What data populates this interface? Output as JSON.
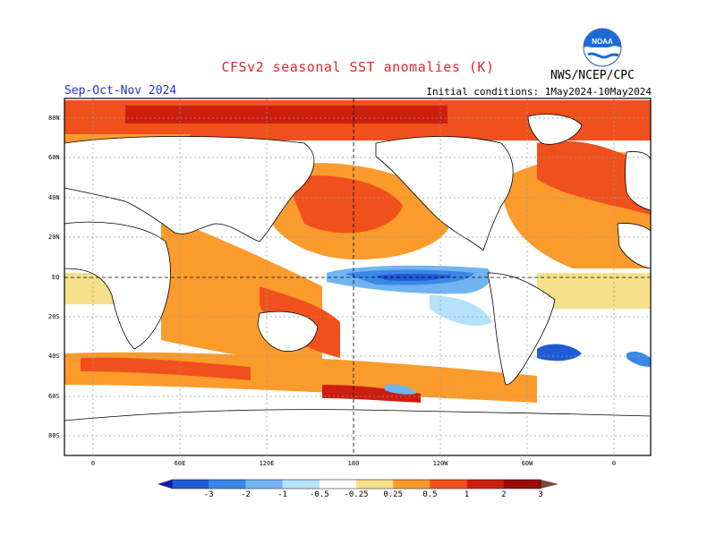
{
  "title": "CFSv2 seasonal SST anomalies (K)",
  "season": "Sep-Oct-Nov 2024",
  "initial_conditions": "Initial conditions: 1May2024-10May2024",
  "agency": "NWS/NCEP/CPC",
  "logo_text": "NOAA",
  "lat_labels": [
    "80N",
    "60N",
    "40N",
    "20N",
    "EQ",
    "20S",
    "40S",
    "60S",
    "80S"
  ],
  "lon_labels": [
    "0",
    "60E",
    "120E",
    "180",
    "120W",
    "60W",
    "0"
  ],
  "colorbar": {
    "labels": [
      "-3",
      "-2",
      "-1",
      "-0.5",
      "-0.25",
      "0.25",
      "0.5",
      "1",
      "2",
      "3"
    ],
    "colors": [
      "#1c1aa8",
      "#1f5bd4",
      "#3a87e8",
      "#72b4f2",
      "#b5e2fa",
      "#ffffff",
      "#f6e08a",
      "#fa9b2c",
      "#f0501c",
      "#cc1e0e",
      "#9c0c0c",
      "#7a4a3a"
    ]
  },
  "colors": {
    "title": "#e0282a",
    "season": "#2231c8"
  }
}
